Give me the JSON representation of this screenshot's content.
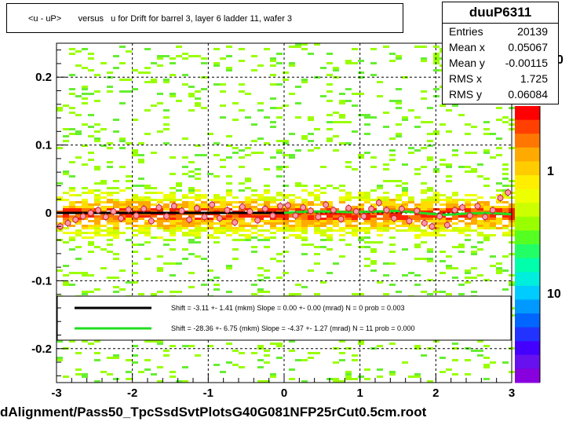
{
  "title": "<u - uP>       versus   u for Drift for barrel 3, layer 6 ladder 11, wafer 3",
  "footer": "dAlignment/Pass50_TpcSsdSvtPlotsG40G081NFP25rCut0.5cm.root",
  "stats": {
    "name": "duuP6311",
    "rows": [
      {
        "label": "Entries",
        "value": "20139"
      },
      {
        "label": "Mean x",
        "value": "0.05067"
      },
      {
        "label": "Mean y",
        "value": "-0.00115"
      },
      {
        "label": "RMS x",
        "value": "1.725"
      },
      {
        "label": "RMS y",
        "value": "0.06084"
      }
    ]
  },
  "legend": [
    {
      "color": "#000000",
      "text": "Shift =    -3.11 +- 1.41 (mkm) Slope =    0.00 +- 0.00 (mrad)  N = 0 prob = 0.003"
    },
    {
      "color": "#22dd22",
      "text": "Shift =   -28.36 +- 6.75 (mkm) Slope =   -4.37 +- 1.27 (mrad)  N = 11 prob = 0.000"
    }
  ],
  "colorbar": {
    "labels": [
      "1",
      "10"
    ],
    "partial_label": "0",
    "colors": [
      "#ff0000",
      "#ff4000",
      "#ff7700",
      "#ffaa00",
      "#ffcc00",
      "#ffee00",
      "#eeff00",
      "#ccff00",
      "#99ff00",
      "#55ff22",
      "#22ff66",
      "#00ffaa",
      "#00eedd",
      "#00ccff",
      "#0099ff",
      "#0066ff",
      "#2233ff",
      "#4400ff",
      "#6611ee",
      "#8800dd"
    ]
  },
  "chart_data": {
    "type": "heatmap",
    "title": "<u - uP>       versus   u for Drift for barrel 3, layer 6 ladder 11, wafer 3",
    "xlim": [
      -3,
      3
    ],
    "ylim": [
      -0.25,
      0.25
    ],
    "x_ticks": [
      "-3",
      "-2",
      "-1",
      "0",
      "1",
      "2",
      "3"
    ],
    "y_ticks": [
      "-0.2",
      "-0.1",
      "0",
      "0.1",
      "0.2"
    ],
    "grid": true,
    "colorbar_scale": "log",
    "profile_points": {
      "x": [
        -2.95,
        -2.85,
        -2.75,
        -2.65,
        -2.55,
        -2.45,
        -2.35,
        -2.25,
        -2.15,
        -2.05,
        -1.95,
        -1.85,
        -1.75,
        -1.65,
        -1.55,
        -1.45,
        -1.35,
        -1.25,
        -1.15,
        -1.05,
        -0.95,
        -0.85,
        -0.75,
        -0.65,
        -0.55,
        -0.45,
        -0.35,
        -0.25,
        -0.15,
        -0.05,
        0.05,
        0.15,
        0.25,
        0.35,
        0.45,
        0.55,
        0.65,
        0.75,
        0.85,
        0.95,
        1.05,
        1.15,
        1.25,
        1.35,
        1.45,
        1.55,
        1.65,
        1.75,
        1.85,
        1.95,
        2.05,
        2.15,
        2.25,
        2.35,
        2.45,
        2.55,
        2.65,
        2.75,
        2.85,
        2.95
      ],
      "y": [
        -0.02,
        -0.015,
        -0.01,
        -0.005,
        0.0,
        0.004,
        -0.006,
        0.002,
        -0.008,
        0.005,
        -0.004,
        0.006,
        -0.012,
        0.008,
        -0.005,
        0.01,
        0.003,
        -0.01,
        0.007,
        -0.006,
        0.012,
        -0.008,
        0.004,
        -0.014,
        0.009,
        0.002,
        -0.011,
        0.006,
        -0.004,
        0.01,
        0.011,
        -0.004,
        0.008,
        0.003,
        -0.006,
        0.012,
        0.004,
        -0.009,
        0.007,
        0.002,
        -0.005,
        0.006,
        0.015,
        0.004,
        -0.008,
        0.006,
        -0.012,
        0.003,
        -0.015,
        -0.02,
        -0.005,
        -0.018,
        0.004,
        0.008,
        -0.004,
        0.01,
        -0.006,
        0.004,
        0.022,
        0.03
      ]
    },
    "series": [
      {
        "name": "Shift = -3.11 +- 1.41 (mkm) Slope = 0.00 +- 0.00 (mrad) N = 0 prob = 0.003",
        "x": [
          -3,
          0
        ],
        "y": [
          0.0,
          0.0
        ]
      },
      {
        "name": "Shift = -28.36 +- 6.75 (mkm) Slope = -4.37 +- 1.27 (mrad) N = 11 prob = 0.000",
        "x": [
          0.0,
          0.3,
          0.6,
          0.9,
          1.2,
          1.5,
          1.8,
          2.1,
          2.4,
          2.7,
          3.0
        ],
        "y": [
          0.0,
          0.002,
          0.002,
          0.001,
          0.002,
          0.003,
          0.0,
          -0.003,
          -0.001,
          0.0,
          -0.002
        ]
      }
    ]
  }
}
